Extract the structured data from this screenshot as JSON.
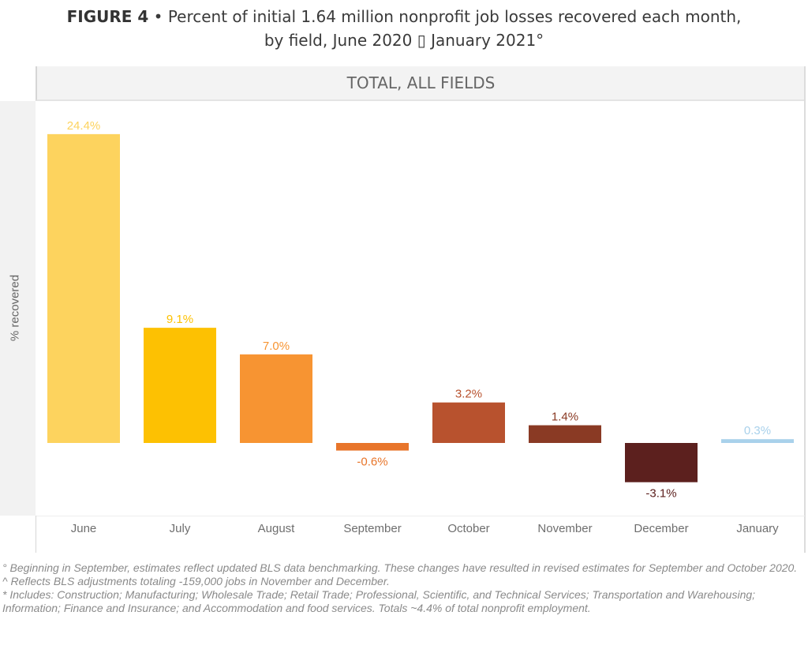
{
  "title": {
    "bold": "FIGURE 4",
    "bullet": "•",
    "line1": "Percent of initial 1.64 million nonprofit job losses recovered each month,",
    "line2": "by field, June 2020 ▯ January 2021°"
  },
  "chart_data": {
    "type": "bar",
    "title": "TOTAL, ALL FIELDS",
    "xlabel": "",
    "ylabel": "% recovered",
    "categories": [
      "June",
      "July",
      "August",
      "September",
      "October",
      "November",
      "December",
      "January"
    ],
    "values": [
      24.4,
      9.1,
      7.0,
      -0.6,
      3.2,
      1.4,
      -3.1,
      0.3
    ],
    "labels": [
      "24.4%",
      "9.1%",
      "7.0%",
      "-0.6%",
      "3.2%",
      "1.4%",
      "-3.1%",
      "0.3%"
    ],
    "colors": [
      "#fdd35e",
      "#fdc102",
      "#f79432",
      "#e8752a",
      "#b8522e",
      "#8a3a24",
      "#5c201e",
      "#a9d1eb"
    ],
    "ylim": [
      -5.5,
      27
    ],
    "grid": false,
    "legend": "none"
  },
  "footnotes": [
    "° Beginning in September, estimates reflect updated BLS data benchmarking. These changes have resulted in revised estimates for September and October 2020.",
    "^ Reflects BLS adjustments totaling -159,000 jobs in November and December.",
    "* Includes: Construction; Manufacturing; Wholesale Trade; Retail Trade; Professional, Scientific, and Technical Services; Transportation and Warehousing; Information; Finance and Insurance; and Accommodation and food services. Totals ~4.4% of total nonprofit employment."
  ]
}
